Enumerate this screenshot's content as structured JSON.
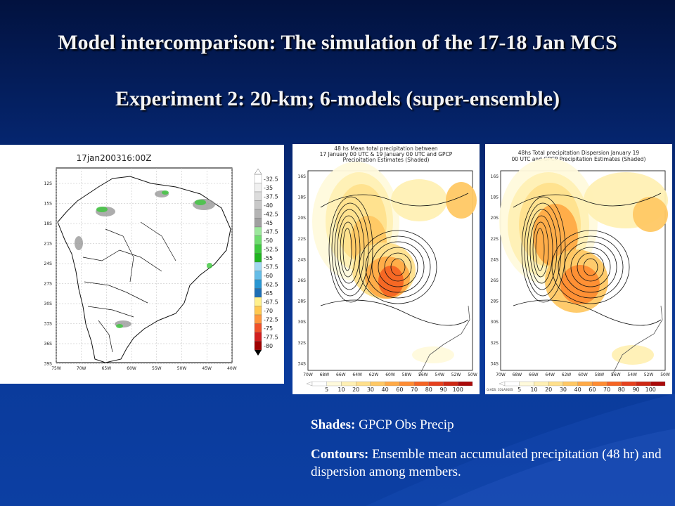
{
  "slide": {
    "title_line1": "Model intercomparison: The simulation of the 17-18 Jan MCS",
    "title_line2": "Experiment 2:   20-km; 6-models (super-ensemble)"
  },
  "ir_panel": {
    "title": "17jan200316:00Z",
    "lat_labels": [
      "12S",
      "15S",
      "18S",
      "21S",
      "24S",
      "27S",
      "30S",
      "33S",
      "36S",
      "39S"
    ],
    "lon_labels": [
      "75W",
      "70W",
      "65W",
      "60W",
      "55W",
      "50W",
      "45W",
      "40W"
    ],
    "colorbar_labels": [
      "-32.5",
      "-35",
      "-37.5",
      "-40",
      "-42.5",
      "-45",
      "-47.5",
      "-50",
      "-52.5",
      "-55",
      "-57.5",
      "-60",
      "-62.5",
      "-65",
      "-67.5",
      "-70",
      "-72.5",
      "-75",
      "-77.5",
      "-80"
    ],
    "colorbar_colors": [
      "#ffffff",
      "#f0f0f0",
      "#dcdcdc",
      "#c8c8c8",
      "#b4b4b4",
      "#a0a0a0",
      "#9ce89c",
      "#6edc6e",
      "#3cc83c",
      "#1eb41e",
      "#a0d8f0",
      "#64bce6",
      "#2896d2",
      "#1e6eb4",
      "#fff08c",
      "#ffc850",
      "#ff963c",
      "#f05028",
      "#d21e1e",
      "#a00000"
    ]
  },
  "mean_panel": {
    "title": "48 hs Mean total precipitation between\n17 January 00 UTC & 19 January 00 UTC and GPCP\nPrecipitation Estimates (Shaded)",
    "lat_labels": [
      "16S",
      "18S",
      "20S",
      "22S",
      "24S",
      "26S",
      "28S",
      "30S",
      "32S",
      "34S"
    ],
    "lon_labels": [
      "70W",
      "68W",
      "66W",
      "64W",
      "62W",
      "60W",
      "58W",
      "56W",
      "54W",
      "52W",
      "50W"
    ],
    "colorbar_labels": [
      "5",
      "10",
      "20",
      "30",
      "40",
      "60",
      "70",
      "80",
      "90",
      "100"
    ]
  },
  "disp_panel": {
    "title": "48hs Total precipitation Dispersion January 19\n00 UTC and GPCP Precipitation Estimates (Shaded)",
    "lat_labels": [
      "16S",
      "18S",
      "20S",
      "22S",
      "24S",
      "26S",
      "28S",
      "30S",
      "32S",
      "34S"
    ],
    "lon_labels": [
      "70W",
      "68W",
      "66W",
      "64W",
      "62W",
      "60W",
      "58W",
      "56W",
      "54W",
      "52W",
      "50W"
    ],
    "colorbar_labels": [
      "5",
      "10",
      "20",
      "30",
      "40",
      "60",
      "70",
      "80",
      "90",
      "100"
    ],
    "credit": "GrADS: COLA/IGES"
  },
  "precip_colors": [
    "#fffadc",
    "#fff0b4",
    "#ffe08c",
    "#ffc864",
    "#ffaa46",
    "#ff8c32",
    "#f56423",
    "#e6411e",
    "#cd2814",
    "#aa0a0a"
  ],
  "captions": {
    "shades_label": "Shades:",
    "shades_text": " GPCP Obs Precip",
    "contours_label": "Contours:",
    "contours_text": " Ensemble mean accumulated precipitation (48 hr) and dispersion among members."
  }
}
